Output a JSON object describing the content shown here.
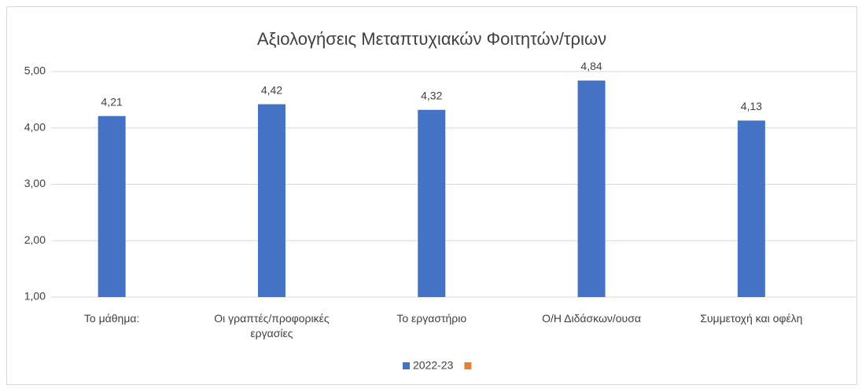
{
  "chart_data": {
    "type": "bar",
    "title": "Αξιολογήσεις Μεταπτυχιακών Φοιτητών/τριων",
    "categories": [
      "Το μάθημα:",
      "Οι γραπτές/προφορικές εργασίες",
      "Το εργαστήριο",
      "Ο/Η Διδάσκων/ουσα",
      "Συμμετοχή και οφέλη"
    ],
    "series": [
      {
        "name": "2022-23",
        "color": "#4472c4",
        "values": [
          4.21,
          4.42,
          4.32,
          4.84,
          4.13
        ],
        "value_labels": [
          "4,21",
          "4,42",
          "4,32",
          "4,84",
          "4,13"
        ]
      },
      {
        "name": null,
        "color": "#ed7d31",
        "values": [
          null,
          null,
          null,
          null,
          null
        ]
      }
    ],
    "ylim": [
      1,
      5
    ],
    "yticks": [
      {
        "value": 1,
        "label": "1,00"
      },
      {
        "value": 2,
        "label": "2,00"
      },
      {
        "value": 3,
        "label": "3,00"
      },
      {
        "value": 4,
        "label": "4,00"
      },
      {
        "value": 5,
        "label": "5,00"
      }
    ],
    "grid": true,
    "legend": "bottom"
  }
}
